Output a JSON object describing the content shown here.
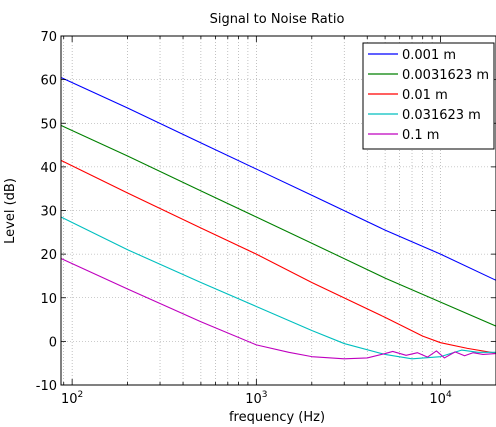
{
  "chart_data": {
    "type": "line",
    "title": "Signal to Noise Ratio",
    "xlabel": "frequency (Hz)",
    "ylabel": "Level (dB)",
    "xscale": "log",
    "xlim": [
      87,
      20000
    ],
    "ylim": [
      -10,
      70
    ],
    "yticks": [
      -10,
      0,
      10,
      20,
      30,
      40,
      50,
      60,
      70
    ],
    "xticks": [
      {
        "value": 100,
        "base": "10",
        "exp": "2"
      },
      {
        "value": 1000,
        "base": "10",
        "exp": "3"
      },
      {
        "value": 10000,
        "base": "10",
        "exp": "4"
      }
    ],
    "grid": true,
    "legend_position": "top-right",
    "series": [
      {
        "name": "0.001 m",
        "color": "#0000ff",
        "x": [
          87,
          200,
          500,
          1000,
          2000,
          5000,
          10000,
          20000
        ],
        "y": [
          60.5,
          53.5,
          45.5,
          39.5,
          33.5,
          25.5,
          20,
          14
        ]
      },
      {
        "name": "0.0031623 m",
        "color": "#008000",
        "x": [
          87,
          200,
          500,
          1000,
          2000,
          5000,
          10000,
          20000
        ],
        "y": [
          49.5,
          42.5,
          34.5,
          28.5,
          22.5,
          14.5,
          9,
          3.5
        ]
      },
      {
        "name": "0.01 m",
        "color": "#ff0000",
        "x": [
          87,
          200,
          500,
          1000,
          2000,
          5000,
          8000,
          10000,
          14000,
          20000
        ],
        "y": [
          41.5,
          34,
          26,
          20,
          13.5,
          5.5,
          1.2,
          -0.3,
          -1.6,
          -2.7
        ]
      },
      {
        "name": "0.031623 m",
        "color": "#00bfbf",
        "x": [
          87,
          200,
          500,
          1000,
          2000,
          3000,
          5000,
          7000,
          10000,
          13000,
          16000,
          20000
        ],
        "y": [
          28.5,
          21,
          13.5,
          8,
          2.5,
          -0.5,
          -3,
          -4,
          -3.5,
          -2,
          -2.5,
          -2.5
        ]
      },
      {
        "name": "0.1 m",
        "color": "#bf00bf",
        "x": [
          87,
          200,
          500,
          1000,
          1500,
          2000,
          3000,
          4000,
          5000,
          5500,
          6500,
          7500,
          8500,
          9500,
          10500,
          12000,
          13500,
          15000,
          17000,
          20000
        ],
        "y": [
          19,
          12,
          4.5,
          -0.8,
          -2.5,
          -3.5,
          -4,
          -3.8,
          -2.8,
          -2.3,
          -3.2,
          -2.6,
          -3.6,
          -2.2,
          -3.8,
          -2.4,
          -3.3,
          -2.6,
          -3.0,
          -2.8
        ]
      }
    ]
  }
}
